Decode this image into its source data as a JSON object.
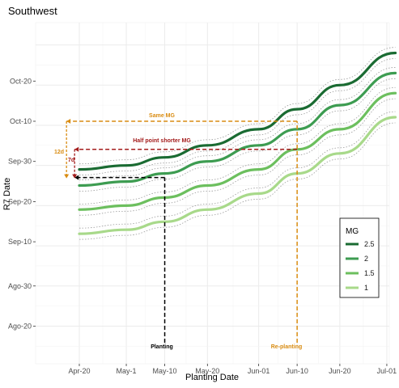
{
  "chart_data": {
    "type": "line",
    "title": "Southwest",
    "xlabel": "Planting Date",
    "ylabel": "R7 Date",
    "x_ticks": [
      "Apr-20",
      "May-1",
      "May-10",
      "May-20",
      "Jun-01",
      "Jun-10",
      "Jun-20",
      "Jul-01"
    ],
    "y_ticks": [
      "Oct-20",
      "Oct-10",
      "Sep-30",
      "Sep-20",
      "Sep-10",
      "Ago-30",
      "Ago-20"
    ],
    "grid": true,
    "legend": {
      "title": "MG",
      "position": "right"
    },
    "series": [
      {
        "name": "2.5",
        "color": "#1a6b32",
        "x": [
          "Apr-20",
          "May-1",
          "May-10",
          "May-20",
          "Jun-01",
          "Jun-10",
          "Jun-20",
          "Jul-03"
        ],
        "y": [
          "Sep-28",
          "Sep-29",
          "Oct-01",
          "Oct-04",
          "Oct-08",
          "Oct-13",
          "Oct-19",
          "Oct-27"
        ]
      },
      {
        "name": "2",
        "color": "#3d9c51",
        "x": [
          "Apr-20",
          "May-1",
          "May-10",
          "May-20",
          "Jun-01",
          "Jun-10",
          "Jun-20",
          "Jul-03"
        ],
        "y": [
          "Sep-24",
          "Sep-25",
          "Sep-27",
          "Sep-30",
          "Oct-04",
          "Oct-08",
          "Oct-14",
          "Oct-22"
        ]
      },
      {
        "name": "1.5",
        "color": "#6cbf5e",
        "x": [
          "Apr-20",
          "May-1",
          "May-10",
          "May-20",
          "Jun-01",
          "Jun-10",
          "Jun-20",
          "Jul-03"
        ],
        "y": [
          "Sep-18",
          "Sep-19",
          "Sep-21",
          "Sep-24",
          "Sep-28",
          "Oct-03",
          "Oct-08",
          "Oct-17"
        ]
      },
      {
        "name": "1",
        "color": "#a8d98a",
        "x": [
          "Apr-20",
          "May-1",
          "May-10",
          "May-20",
          "Jun-01",
          "Jun-10",
          "Jun-20",
          "Jul-03"
        ],
        "y": [
          "Sep-12",
          "Sep-13",
          "Sep-15",
          "Sep-18",
          "Sep-22",
          "Sep-27",
          "Oct-02",
          "Oct-11"
        ]
      }
    ],
    "annotations": [
      {
        "text": "Planting",
        "x": "May-10",
        "color": "#000000"
      },
      {
        "text": "Re-planting",
        "x": "Jun-10",
        "color": "#d98c12"
      },
      {
        "text": "Same MG",
        "y": "Oct-10",
        "color": "#d98c12"
      },
      {
        "text": "Half point shorter MG",
        "y": "Oct-03",
        "color": "#a31b1b"
      },
      {
        "text": "12d",
        "color": "#d98c12"
      },
      {
        "text": "7d",
        "color": "#a31b1b"
      }
    ]
  }
}
